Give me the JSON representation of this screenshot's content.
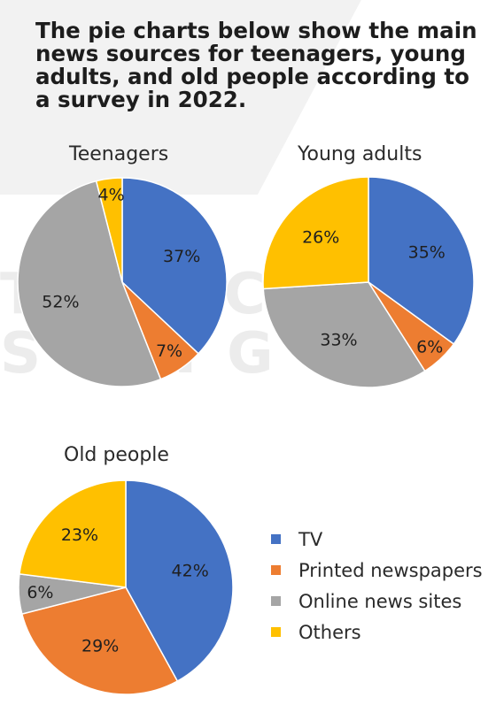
{
  "title": "The pie charts below show the main news sources for teenagers, young adults, and old people according to a survey in 2022.",
  "watermark": {
    "line1": "THỰC",
    "line2": "SỐNG"
  },
  "colors": {
    "TV": "#4472c4",
    "Printed newspapers": "#ed7d31",
    "Online news sites": "#a5a5a5",
    "Others": "#ffc000"
  },
  "legend": [
    {
      "label": "TV",
      "color": "#4472c4"
    },
    {
      "label": "Printed newspapers",
      "color": "#ed7d31"
    },
    {
      "label": "Online news sites",
      "color": "#a5a5a5"
    },
    {
      "label": "Others",
      "color": "#ffc000"
    }
  ],
  "chart_data": [
    {
      "type": "pie",
      "title": "Teenagers",
      "categories": [
        "TV",
        "Printed newspapers",
        "Online news sites",
        "Others"
      ],
      "values": [
        37,
        7,
        52,
        4
      ],
      "labels": [
        "37%",
        "7%",
        "52%",
        "4%"
      ]
    },
    {
      "type": "pie",
      "title": "Young adults",
      "categories": [
        "TV",
        "Printed newspapers",
        "Online news sites",
        "Others"
      ],
      "values": [
        35,
        6,
        33,
        26
      ],
      "labels": [
        "35%",
        "6%",
        "33%",
        "26%"
      ]
    },
    {
      "type": "pie",
      "title": "Old people",
      "categories": [
        "TV",
        "Printed newspapers",
        "Online news sites",
        "Others"
      ],
      "values": [
        42,
        29,
        6,
        23
      ],
      "labels": [
        "42%",
        "29%",
        "6%",
        "23%"
      ]
    }
  ]
}
